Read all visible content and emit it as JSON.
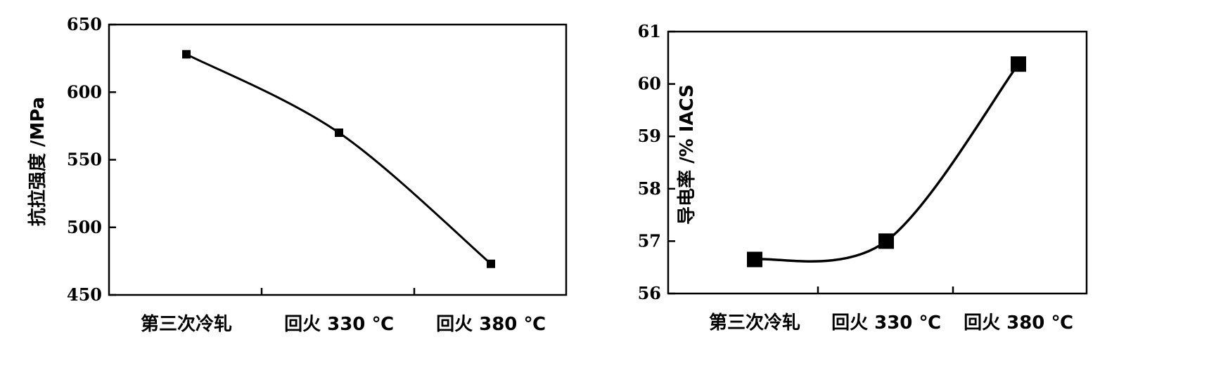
{
  "chart_data": [
    {
      "type": "line",
      "categories": [
        "第三次冷轧",
        "回火 330 ℃",
        "回火 380 ℃"
      ],
      "series": [
        {
          "values": [
            628,
            570,
            473
          ]
        }
      ],
      "ylabel": "抗拉强度 /MPa",
      "xlabel": "",
      "ylim": [
        450,
        650
      ],
      "yticks": [
        "450",
        "500",
        "550",
        "600",
        "650"
      ],
      "marker": "square",
      "grid": false
    },
    {
      "type": "line",
      "categories": [
        "第三次冷轧",
        "回火 330 ℃",
        "回火 380 ℃"
      ],
      "series": [
        {
          "values": [
            56.65,
            57.0,
            60.38
          ]
        }
      ],
      "ylabel": "导电率 /% IACS",
      "xlabel": "",
      "ylim": [
        56,
        61
      ],
      "yticks": [
        "56",
        "57",
        "58",
        "59",
        "60",
        "61"
      ],
      "marker": "square",
      "grid": false
    }
  ]
}
